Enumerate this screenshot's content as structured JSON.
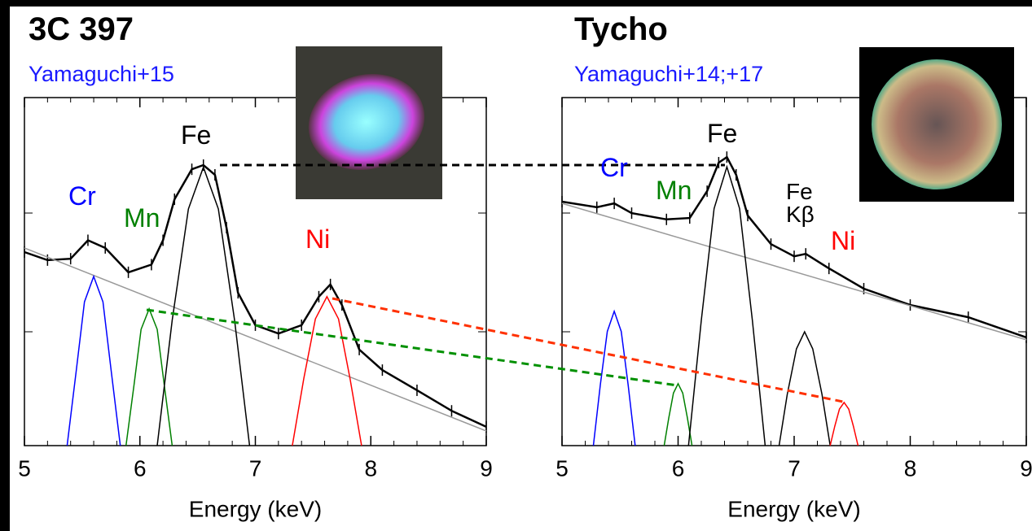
{
  "chart_data": [
    {
      "type": "line",
      "title": "3C 397",
      "subtitle": "Yamaguchi+15",
      "x_label": "Energy (keV)",
      "xlim": [
        5,
        9
      ],
      "xticks": [
        5,
        6,
        7,
        8,
        9
      ],
      "ylim": [
        0,
        100
      ],
      "series": [
        {
          "color": "#000000",
          "x": [
            5.0,
            5.2,
            5.4,
            5.55,
            5.7,
            5.9,
            6.1,
            6.2,
            6.3,
            6.45,
            6.55,
            6.65,
            6.75,
            6.85,
            7.0,
            7.2,
            7.4,
            7.55,
            7.65,
            7.75,
            7.9,
            8.1,
            8.4,
            8.7,
            9.0
          ],
          "values": [
            55.6,
            53.3,
            53.7,
            59,
            56.8,
            49.8,
            52,
            59,
            70.8,
            79.4,
            80.6,
            77.8,
            62.6,
            43.9,
            34.6,
            32.2,
            34.6,
            42.8,
            46.3,
            40.4,
            27.6,
            21.7,
            15.9,
            10,
            5.4
          ]
        },
        {
          "color": "#999999",
          "x": [
            5,
            9
          ],
          "values": [
            56.8,
            4.2
          ]
        },
        {
          "name": "Cr",
          "color": "#0000ff",
          "x": [
            5.37,
            5.45,
            5.52,
            5.6,
            5.68,
            5.75,
            5.83
          ],
          "values": [
            0,
            21.9,
            41.3,
            48.6,
            41.3,
            21.9,
            0
          ]
        },
        {
          "name": "Mn",
          "color": "#008000",
          "x": [
            5.88,
            5.95,
            6.01,
            6.08,
            6.15,
            6.21,
            6.28
          ],
          "values": [
            0,
            17.7,
            33.4,
            39.3,
            33.4,
            17.7,
            0
          ]
        },
        {
          "name": "Fe",
          "color": "#000000",
          "x": [
            6.15,
            6.28,
            6.42,
            6.55,
            6.68,
            6.82,
            6.95
          ],
          "values": [
            0,
            36,
            68,
            80,
            68,
            36,
            0
          ]
        },
        {
          "name": "Ni",
          "color": "#ff0000",
          "x": [
            7.32,
            7.42,
            7.52,
            7.62,
            7.72,
            7.82,
            7.92
          ],
          "values": [
            0,
            19.3,
            36.4,
            42.8,
            36.4,
            19.3,
            0
          ]
        }
      ]
    },
    {
      "type": "line",
      "title": "Tycho",
      "subtitle": "Yamaguchi+14;+17",
      "x_label": "Energy (keV)",
      "xlim": [
        5,
        9
      ],
      "xticks": [
        5,
        6,
        7,
        8,
        9
      ],
      "ylim": [
        0,
        100
      ],
      "series": [
        {
          "color": "#000000",
          "x": [
            5.0,
            5.3,
            5.45,
            5.6,
            5.9,
            6.1,
            6.25,
            6.35,
            6.42,
            6.5,
            6.6,
            6.8,
            7.0,
            7.1,
            7.3,
            7.6,
            8.0,
            8.5,
            9.0
          ],
          "values": [
            70.1,
            68.5,
            69.6,
            66.8,
            65,
            65.4,
            73.1,
            81.3,
            82.9,
            77.8,
            66.1,
            57.9,
            54.4,
            55.1,
            50.9,
            45.1,
            40.4,
            36.9,
            31.1
          ]
        },
        {
          "color": "#999999",
          "x": [
            5,
            9
          ],
          "values": [
            69.6,
            30.4
          ]
        },
        {
          "name": "Cr",
          "color": "#0000ff",
          "x": [
            5.27,
            5.33,
            5.39,
            5.45,
            5.51,
            5.57,
            5.63
          ],
          "values": [
            0,
            17.4,
            32.8,
            38.6,
            32.8,
            17.4,
            0
          ]
        },
        {
          "name": "Mn",
          "color": "#008000",
          "x": [
            5.88,
            5.92,
            5.96,
            6.0,
            6.04,
            6.08,
            6.12
          ],
          "values": [
            0,
            8,
            15.1,
            17.8,
            15.1,
            8,
            0
          ]
        },
        {
          "name": "Fe",
          "color": "#000000",
          "x": [
            6.09,
            6.2,
            6.31,
            6.42,
            6.53,
            6.64,
            6.75
          ],
          "values": [
            0,
            36,
            68.1,
            80.1,
            68.1,
            36,
            0
          ]
        },
        {
          "name": "Fe Kβ",
          "color": "#000000",
          "x": [
            6.87,
            6.94,
            7.02,
            7.09,
            7.16,
            7.24,
            7.31
          ],
          "values": [
            0,
            14.7,
            27.8,
            32.7,
            27.8,
            14.7,
            0
          ]
        },
        {
          "name": "Ni",
          "color": "#ff0000",
          "x": [
            7.31,
            7.35,
            7.39,
            7.43,
            7.47,
            7.51,
            7.55
          ],
          "values": [
            0,
            5.6,
            10.5,
            12.4,
            10.5,
            5.6,
            0
          ]
        }
      ]
    }
  ]
}
